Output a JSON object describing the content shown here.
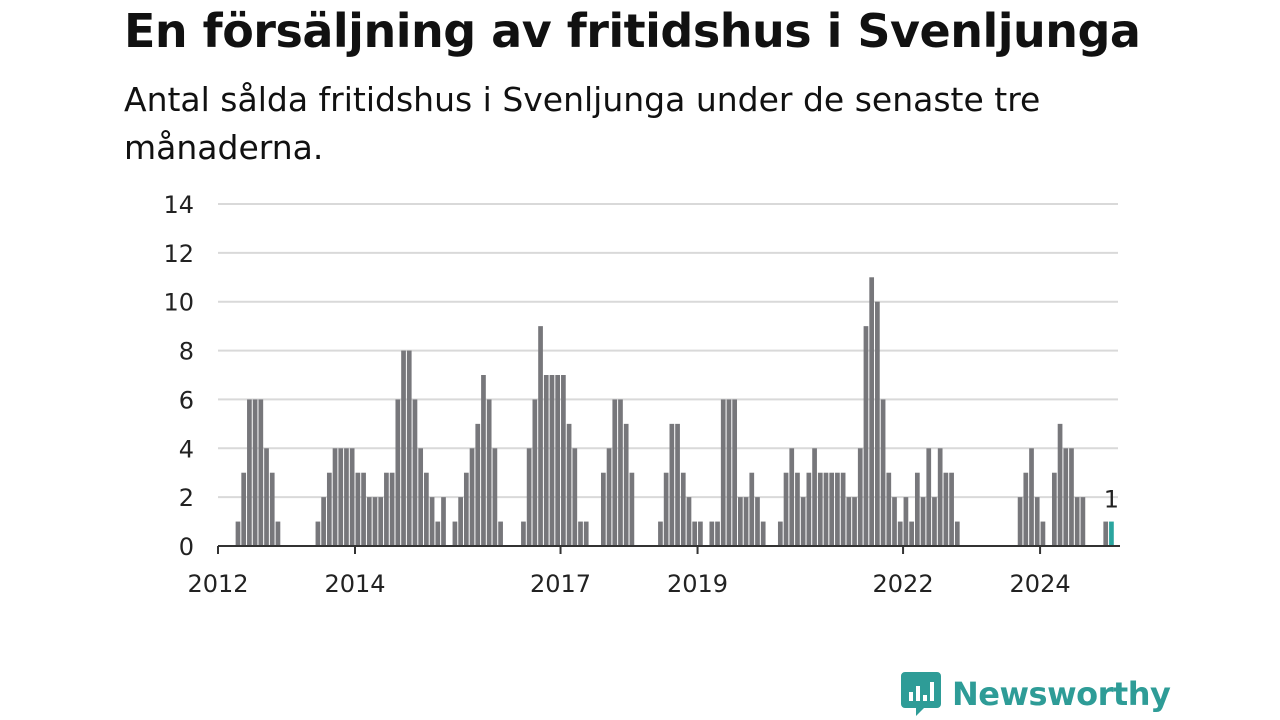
{
  "title": "En försäljning av fritidshus i Svenljunga",
  "subtitle": "Antal sålda fritidshus i Svenljunga under de senaste tre månaderna.",
  "logo": {
    "text": "Newsworthy",
    "icon": "newsworthy-logo-icon",
    "color": "#2e9c97"
  },
  "colors": {
    "bar": "#77777b",
    "highlight": "#2aa59f",
    "grid": "#d9d9d9",
    "axis": "#333333"
  },
  "chart_data": {
    "type": "bar",
    "ylim": [
      0,
      14
    ],
    "yticks": [
      0,
      2,
      4,
      6,
      8,
      10,
      12,
      14
    ],
    "grid": true,
    "x_start": "2012-01",
    "x_end": "2025-02",
    "x_ticks": [
      {
        "label": "2012",
        "date": "2012-01"
      },
      {
        "label": "2014",
        "date": "2014-01"
      },
      {
        "label": "2017",
        "date": "2017-01"
      },
      {
        "label": "2019",
        "date": "2019-01"
      },
      {
        "label": "2022",
        "date": "2022-01"
      },
      {
        "label": "2024",
        "date": "2024-01"
      }
    ],
    "series": [
      {
        "values": [
          {
            "date": "2012-04",
            "value": 1
          },
          {
            "date": "2012-05",
            "value": 3
          },
          {
            "date": "2012-06",
            "value": 6
          },
          {
            "date": "2012-07",
            "value": 6
          },
          {
            "date": "2012-08",
            "value": 6
          },
          {
            "date": "2012-09",
            "value": 4
          },
          {
            "date": "2012-10",
            "value": 3
          },
          {
            "date": "2012-11",
            "value": 1
          },
          {
            "date": "2013-06",
            "value": 1
          },
          {
            "date": "2013-07",
            "value": 2
          },
          {
            "date": "2013-08",
            "value": 3
          },
          {
            "date": "2013-09",
            "value": 4
          },
          {
            "date": "2013-10",
            "value": 4
          },
          {
            "date": "2013-11",
            "value": 4
          },
          {
            "date": "2013-12",
            "value": 4
          },
          {
            "date": "2014-01",
            "value": 3
          },
          {
            "date": "2014-02",
            "value": 3
          },
          {
            "date": "2014-03",
            "value": 2
          },
          {
            "date": "2014-04",
            "value": 2
          },
          {
            "date": "2014-05",
            "value": 2
          },
          {
            "date": "2014-06",
            "value": 3
          },
          {
            "date": "2014-07",
            "value": 3
          },
          {
            "date": "2014-08",
            "value": 6
          },
          {
            "date": "2014-09",
            "value": 8
          },
          {
            "date": "2014-10",
            "value": 8
          },
          {
            "date": "2014-11",
            "value": 6
          },
          {
            "date": "2014-12",
            "value": 4
          },
          {
            "date": "2015-01",
            "value": 3
          },
          {
            "date": "2015-02",
            "value": 2
          },
          {
            "date": "2015-03",
            "value": 1
          },
          {
            "date": "2015-04",
            "value": 2
          },
          {
            "date": "2015-06",
            "value": 1
          },
          {
            "date": "2015-07",
            "value": 2
          },
          {
            "date": "2015-08",
            "value": 3
          },
          {
            "date": "2015-09",
            "value": 4
          },
          {
            "date": "2015-10",
            "value": 5
          },
          {
            "date": "2015-11",
            "value": 7
          },
          {
            "date": "2015-12",
            "value": 6
          },
          {
            "date": "2016-01",
            "value": 4
          },
          {
            "date": "2016-02",
            "value": 1
          },
          {
            "date": "2016-06",
            "value": 1
          },
          {
            "date": "2016-07",
            "value": 4
          },
          {
            "date": "2016-08",
            "value": 6
          },
          {
            "date": "2016-09",
            "value": 9
          },
          {
            "date": "2016-10",
            "value": 7
          },
          {
            "date": "2016-11",
            "value": 7
          },
          {
            "date": "2016-12",
            "value": 7
          },
          {
            "date": "2017-01",
            "value": 7
          },
          {
            "date": "2017-02",
            "value": 5
          },
          {
            "date": "2017-03",
            "value": 4
          },
          {
            "date": "2017-04",
            "value": 1
          },
          {
            "date": "2017-05",
            "value": 1
          },
          {
            "date": "2017-08",
            "value": 3
          },
          {
            "date": "2017-09",
            "value": 4
          },
          {
            "date": "2017-10",
            "value": 6
          },
          {
            "date": "2017-11",
            "value": 6
          },
          {
            "date": "2017-12",
            "value": 5
          },
          {
            "date": "2018-01",
            "value": 3
          },
          {
            "date": "2018-06",
            "value": 1
          },
          {
            "date": "2018-07",
            "value": 3
          },
          {
            "date": "2018-08",
            "value": 5
          },
          {
            "date": "2018-09",
            "value": 5
          },
          {
            "date": "2018-10",
            "value": 3
          },
          {
            "date": "2018-11",
            "value": 2
          },
          {
            "date": "2018-12",
            "value": 1
          },
          {
            "date": "2019-01",
            "value": 1
          },
          {
            "date": "2019-03",
            "value": 1
          },
          {
            "date": "2019-04",
            "value": 1
          },
          {
            "date": "2019-05",
            "value": 6
          },
          {
            "date": "2019-06",
            "value": 6
          },
          {
            "date": "2019-07",
            "value": 6
          },
          {
            "date": "2019-08",
            "value": 2
          },
          {
            "date": "2019-09",
            "value": 2
          },
          {
            "date": "2019-10",
            "value": 3
          },
          {
            "date": "2019-11",
            "value": 2
          },
          {
            "date": "2019-12",
            "value": 1
          },
          {
            "date": "2020-03",
            "value": 1
          },
          {
            "date": "2020-04",
            "value": 3
          },
          {
            "date": "2020-05",
            "value": 4
          },
          {
            "date": "2020-06",
            "value": 3
          },
          {
            "date": "2020-07",
            "value": 2
          },
          {
            "date": "2020-08",
            "value": 3
          },
          {
            "date": "2020-09",
            "value": 4
          },
          {
            "date": "2020-10",
            "value": 3
          },
          {
            "date": "2020-11",
            "value": 3
          },
          {
            "date": "2020-12",
            "value": 3
          },
          {
            "date": "2021-01",
            "value": 3
          },
          {
            "date": "2021-02",
            "value": 3
          },
          {
            "date": "2021-03",
            "value": 2
          },
          {
            "date": "2021-04",
            "value": 2
          },
          {
            "date": "2021-05",
            "value": 4
          },
          {
            "date": "2021-06",
            "value": 9
          },
          {
            "date": "2021-07",
            "value": 11
          },
          {
            "date": "2021-08",
            "value": 10
          },
          {
            "date": "2021-09",
            "value": 6
          },
          {
            "date": "2021-10",
            "value": 3
          },
          {
            "date": "2021-11",
            "value": 2
          },
          {
            "date": "2021-12",
            "value": 1
          },
          {
            "date": "2022-01",
            "value": 2
          },
          {
            "date": "2022-02",
            "value": 1
          },
          {
            "date": "2022-03",
            "value": 3
          },
          {
            "date": "2022-04",
            "value": 2
          },
          {
            "date": "2022-05",
            "value": 4
          },
          {
            "date": "2022-06",
            "value": 2
          },
          {
            "date": "2022-07",
            "value": 4
          },
          {
            "date": "2022-08",
            "value": 3
          },
          {
            "date": "2022-09",
            "value": 3
          },
          {
            "date": "2022-10",
            "value": 1
          },
          {
            "date": "2023-09",
            "value": 2
          },
          {
            "date": "2023-10",
            "value": 3
          },
          {
            "date": "2023-11",
            "value": 4
          },
          {
            "date": "2023-12",
            "value": 2
          },
          {
            "date": "2024-01",
            "value": 1
          },
          {
            "date": "2024-03",
            "value": 3
          },
          {
            "date": "2024-04",
            "value": 5
          },
          {
            "date": "2024-05",
            "value": 4
          },
          {
            "date": "2024-06",
            "value": 4
          },
          {
            "date": "2024-07",
            "value": 2
          },
          {
            "date": "2024-08",
            "value": 2
          },
          {
            "date": "2024-12",
            "value": 1
          },
          {
            "date": "2025-01",
            "value": 1,
            "highlight": true,
            "label": "1"
          }
        ]
      }
    ]
  }
}
